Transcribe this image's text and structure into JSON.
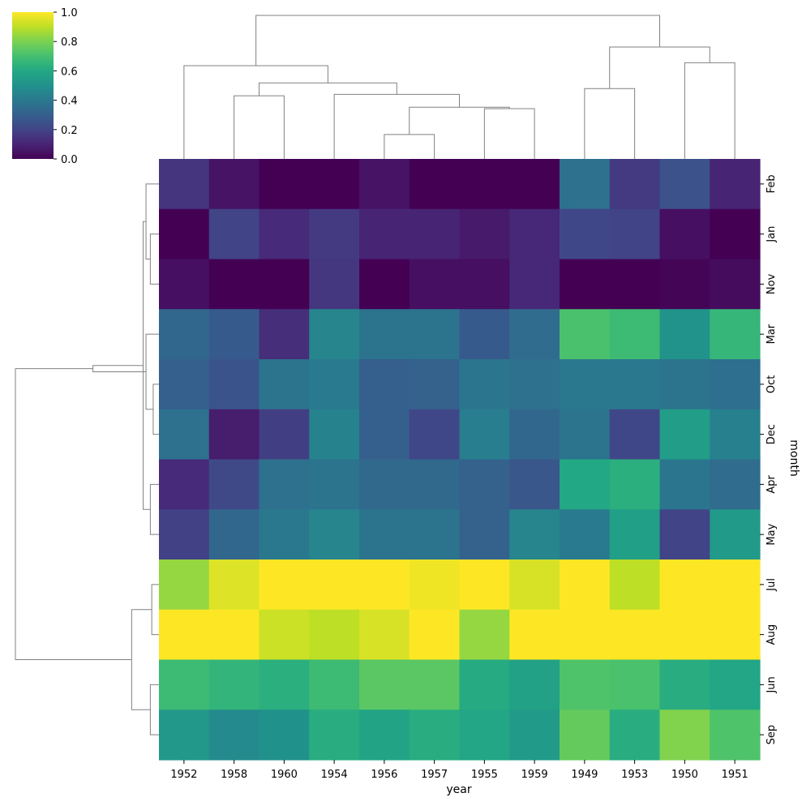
{
  "chart_data": {
    "type": "heatmap",
    "title": "",
    "xlabel": "year",
    "ylabel": "month",
    "x_categories": [
      "1952",
      "1958",
      "1960",
      "1954",
      "1956",
      "1957",
      "1955",
      "1959",
      "1949",
      "1953",
      "1950",
      "1951"
    ],
    "y_categories": [
      "Feb",
      "Jan",
      "Nov",
      "Mar",
      "Oct",
      "Dec",
      "Apr",
      "May",
      "Jul",
      "Aug",
      "Jun",
      "Sep"
    ],
    "values": [
      [
        0.15,
        0.05,
        0.0,
        0.0,
        0.05,
        0.0,
        0.0,
        0.0,
        0.37,
        0.17,
        0.25,
        0.1
      ],
      [
        0.0,
        0.2,
        0.12,
        0.17,
        0.1,
        0.1,
        0.07,
        0.11,
        0.21,
        0.2,
        0.04,
        0.0
      ],
      [
        0.04,
        0.0,
        0.0,
        0.16,
        0.0,
        0.04,
        0.04,
        0.11,
        0.0,
        0.0,
        0.01,
        0.03
      ],
      [
        0.33,
        0.28,
        0.13,
        0.45,
        0.38,
        0.38,
        0.28,
        0.35,
        0.71,
        0.68,
        0.51,
        0.66
      ],
      [
        0.3,
        0.26,
        0.38,
        0.41,
        0.3,
        0.31,
        0.39,
        0.37,
        0.4,
        0.4,
        0.38,
        0.36
      ],
      [
        0.37,
        0.08,
        0.18,
        0.44,
        0.3,
        0.21,
        0.42,
        0.33,
        0.38,
        0.21,
        0.55,
        0.43
      ],
      [
        0.12,
        0.22,
        0.37,
        0.38,
        0.34,
        0.34,
        0.31,
        0.27,
        0.6,
        0.63,
        0.39,
        0.35
      ],
      [
        0.19,
        0.33,
        0.4,
        0.45,
        0.38,
        0.38,
        0.31,
        0.45,
        0.41,
        0.56,
        0.2,
        0.54
      ],
      [
        0.84,
        0.95,
        1.0,
        1.0,
        1.0,
        0.98,
        1.0,
        0.94,
        1.0,
        0.9,
        1.0,
        1.0
      ],
      [
        1.0,
        1.0,
        0.92,
        0.9,
        0.94,
        1.0,
        0.84,
        1.0,
        1.0,
        1.0,
        1.0,
        1.0
      ],
      [
        0.68,
        0.65,
        0.63,
        0.68,
        0.74,
        0.74,
        0.61,
        0.57,
        0.72,
        0.71,
        0.62,
        0.59
      ],
      [
        0.53,
        0.47,
        0.5,
        0.62,
        0.58,
        0.62,
        0.59,
        0.54,
        0.76,
        0.62,
        0.81,
        0.72
      ]
    ],
    "colormap": "viridis",
    "vmin": 0.0,
    "vmax": 1.0,
    "colorbar_ticks": [
      "0.0",
      "0.2",
      "0.4",
      "0.6",
      "0.8",
      "1.0"
    ],
    "grid": false,
    "dendrogram_color": "#808080",
    "col_dendrogram": {
      "leaf_order": [
        "1952",
        "1958",
        "1960",
        "1954",
        "1956",
        "1957",
        "1955",
        "1959",
        "1949",
        "1953",
        "1950",
        "1951"
      ],
      "merges": [
        {
          "a": 4,
          "b": 5,
          "height": 0.17
        },
        {
          "a": 6,
          "b": 7,
          "height": 0.35
        },
        {
          "a": 12,
          "b": 13,
          "height": 0.36
        },
        {
          "a": 3,
          "b": 14,
          "height": 0.45
        },
        {
          "a": 1,
          "b": 2,
          "height": 0.44
        },
        {
          "a": 8,
          "b": 9,
          "height": 0.49
        },
        {
          "a": 10,
          "b": 11,
          "height": 0.67
        },
        {
          "a": 16,
          "b": 15,
          "height": 0.53
        },
        {
          "a": 17,
          "b": 18,
          "height": 0.78
        },
        {
          "a": 0,
          "b": 19,
          "height": 0.65
        },
        {
          "a": 21,
          "b": 20,
          "height": 1.0
        }
      ]
    },
    "row_dendrogram": {
      "leaf_order": [
        "Feb",
        "Jan",
        "Nov",
        "Mar",
        "Oct",
        "Dec",
        "Apr",
        "May",
        "Jul",
        "Aug",
        "Jun",
        "Sep"
      ],
      "merges": [
        {
          "a": 1,
          "b": 2,
          "height": 0.06
        },
        {
          "a": 4,
          "b": 5,
          "height": 0.04
        },
        {
          "a": 6,
          "b": 7,
          "height": 0.06
        },
        {
          "a": 8,
          "b": 9,
          "height": 0.05
        },
        {
          "a": 10,
          "b": 11,
          "height": 0.06
        },
        {
          "a": 0,
          "b": 12,
          "height": 0.09
        },
        {
          "a": 13,
          "b": 3,
          "height": 0.09
        },
        {
          "a": 17,
          "b": 14,
          "height": 0.11
        },
        {
          "a": 15,
          "b": 16,
          "height": 0.19
        },
        {
          "a": 18,
          "b": 19,
          "height": 0.46
        },
        {
          "a": 20,
          "b": 21,
          "height": 1.0
        }
      ]
    }
  }
}
